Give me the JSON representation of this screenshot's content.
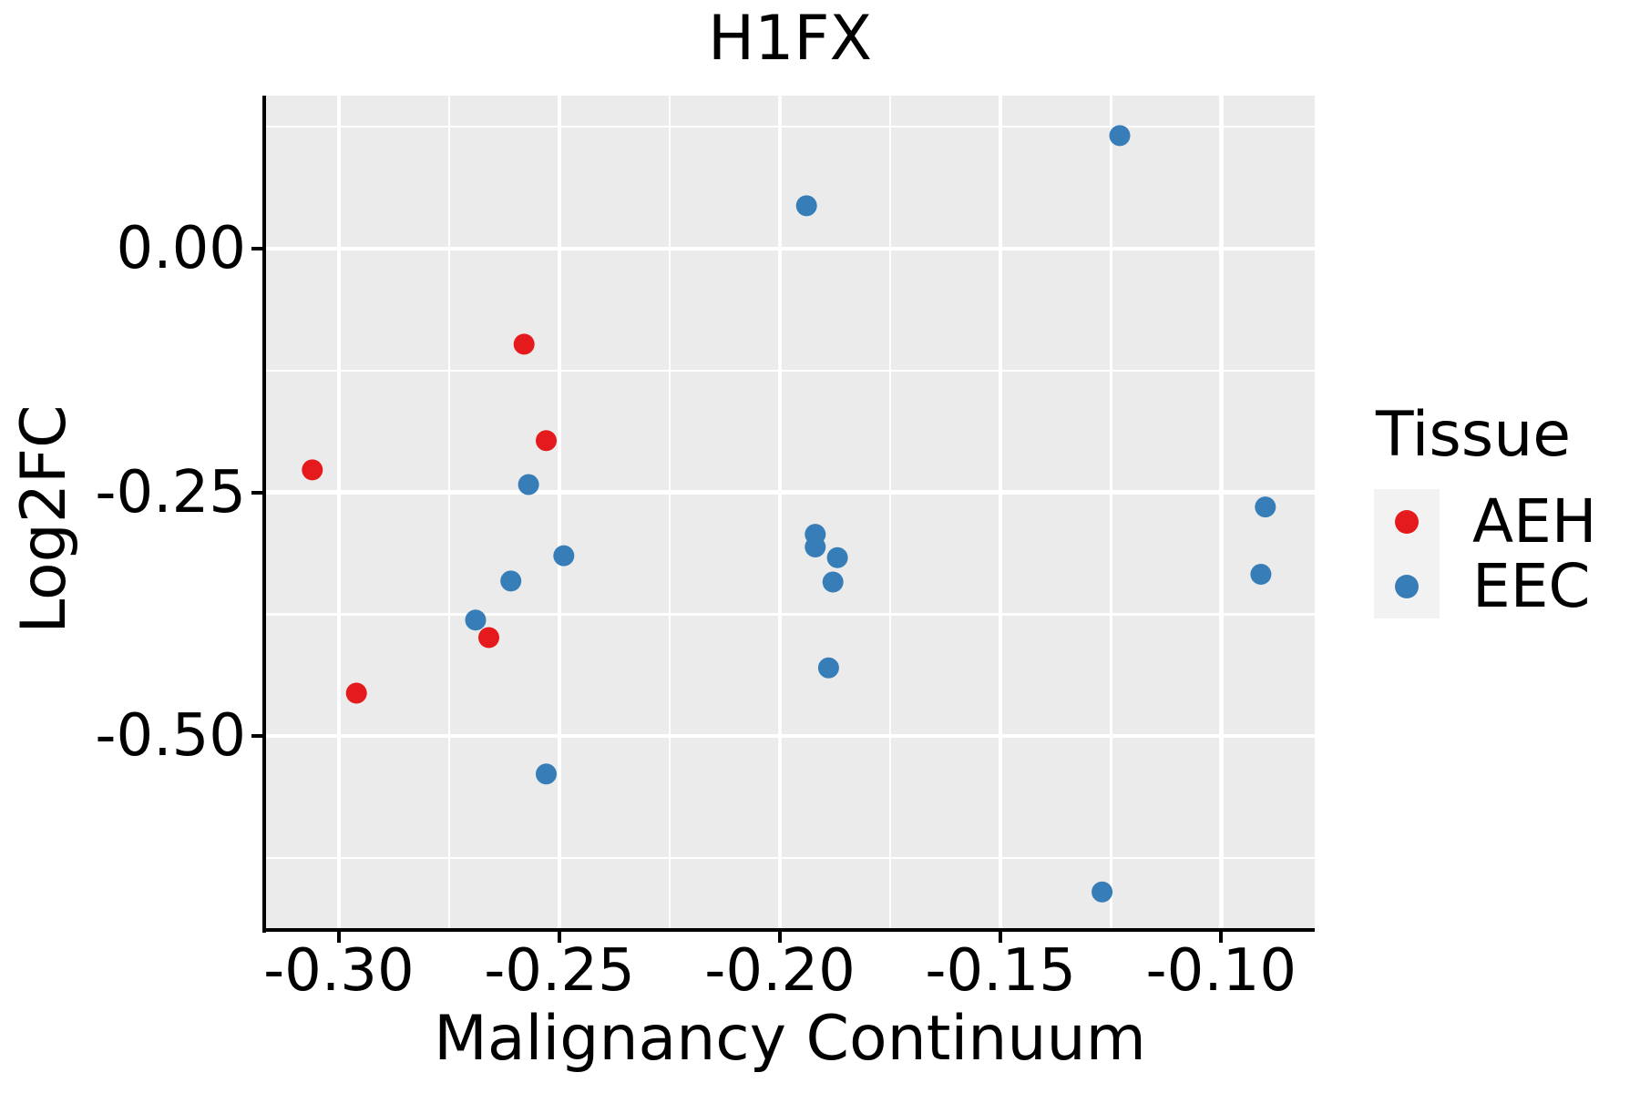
{
  "title": "H1FX",
  "chart_data": {
    "type": "scatter",
    "title": "H1FX",
    "xlabel": "Malignancy Continuum",
    "ylabel": "Log2FC",
    "grid": true,
    "legend_position": "right",
    "panel_background": "#EBEBEB",
    "gridline_color": "#FFFFFF",
    "axes": {
      "x": {
        "domain": [
          -0.3167,
          -0.0788
        ],
        "major_ticks": [
          -0.3,
          -0.25,
          -0.2,
          -0.15,
          -0.1
        ],
        "tick_labels": [
          "-0.30",
          "-0.25",
          "-0.20",
          "-0.15",
          "-0.10"
        ],
        "minor_ticks": [
          -0.275,
          -0.225,
          -0.175,
          -0.125
        ]
      },
      "y": {
        "domain": [
          -0.698,
          0.157
        ],
        "major_ticks": [
          0.0,
          -0.25,
          -0.5
        ],
        "tick_labels": [
          "0.00",
          "-0.25",
          "-0.50"
        ],
        "minor_ticks": [
          0.125,
          -0.125,
          -0.375,
          -0.625
        ]
      }
    },
    "series": [
      {
        "name": "AEH",
        "color": "#E41A1C",
        "points": [
          [
            -0.306,
            -0.227
          ],
          [
            -0.296,
            -0.456
          ],
          [
            -0.258,
            -0.098
          ],
          [
            -0.253,
            -0.197
          ],
          [
            -0.266,
            -0.399
          ]
        ]
      },
      {
        "name": "EEC",
        "color": "#377EB8",
        "points": [
          [
            -0.194,
            0.044
          ],
          [
            -0.123,
            0.116
          ],
          [
            -0.257,
            -0.242
          ],
          [
            -0.249,
            -0.315
          ],
          [
            -0.261,
            -0.341
          ],
          [
            -0.269,
            -0.381
          ],
          [
            -0.253,
            -0.539
          ],
          [
            -0.192,
            -0.293
          ],
          [
            -0.192,
            -0.306
          ],
          [
            -0.187,
            -0.317
          ],
          [
            -0.188,
            -0.342
          ],
          [
            -0.189,
            -0.43
          ],
          [
            -0.127,
            -0.66
          ],
          [
            -0.09,
            -0.265
          ],
          [
            -0.091,
            -0.334
          ]
        ]
      }
    ]
  },
  "legend": {
    "title": "Tissue",
    "key_background": "#F2F2F2",
    "entries": [
      {
        "label": "AEH",
        "color": "#E41A1C"
      },
      {
        "label": "EEC",
        "color": "#377EB8"
      }
    ]
  }
}
